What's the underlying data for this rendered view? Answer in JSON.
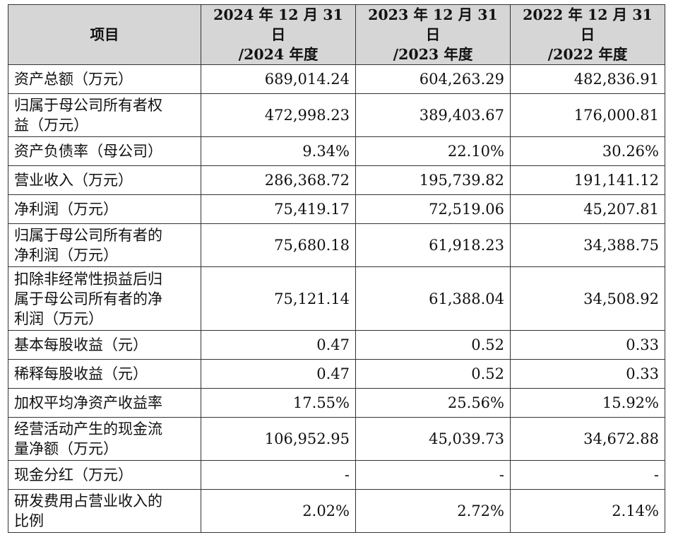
{
  "header": {
    "item": "项目",
    "col2024": [
      "2024 年 12 月 31 日",
      "/2024 年度"
    ],
    "col2023": [
      "2023 年 12 月 31 日",
      "/2023 年度"
    ],
    "col2022": [
      "2022 年 12 月 31 日",
      "/2022 年度"
    ]
  },
  "rows": [
    {
      "label": [
        "资产总额（万元）"
      ],
      "v2024": "689,014.24",
      "v2023": "604,263.29",
      "v2022": "482,836.91"
    },
    {
      "label": [
        "归属于母公司所有者权",
        "益（万元）"
      ],
      "v2024": "472,998.23",
      "v2023": "389,403.67",
      "v2022": "176,000.81"
    },
    {
      "label": [
        "资产负债率（母公司）"
      ],
      "v2024": "9.34%",
      "v2023": "22.10%",
      "v2022": "30.26%"
    },
    {
      "label": [
        "营业收入（万元）"
      ],
      "v2024": "286,368.72",
      "v2023": "195,739.82",
      "v2022": "191,141.12"
    },
    {
      "label": [
        "净利润（万元）"
      ],
      "v2024": "75,419.17",
      "v2023": "72,519.06",
      "v2022": "45,207.81"
    },
    {
      "label": [
        "归属于母公司所有者的",
        "净利润（万元）"
      ],
      "v2024": "75,680.18",
      "v2023": "61,918.23",
      "v2022": "34,388.75"
    },
    {
      "label": [
        "扣除非经常性损益后归",
        "属于母公司所有者的净",
        "利润（万元）"
      ],
      "v2024": "75,121.14",
      "v2023": "61,388.04",
      "v2022": "34,508.92"
    },
    {
      "label": [
        "基本每股收益（元）"
      ],
      "v2024": "0.47",
      "v2023": "0.52",
      "v2022": "0.33"
    },
    {
      "label": [
        "稀释每股收益（元）"
      ],
      "v2024": "0.47",
      "v2023": "0.52",
      "v2022": "0.33"
    },
    {
      "label": [
        "加权平均净资产收益率"
      ],
      "v2024": "17.55%",
      "v2023": "25.56%",
      "v2022": "15.92%"
    },
    {
      "label": [
        "经营活动产生的现金流",
        "量净额（万元）"
      ],
      "v2024": "106,952.95",
      "v2023": "45,039.73",
      "v2022": "34,672.88"
    },
    {
      "label": [
        "现金分红（万元）"
      ],
      "v2024": "-",
      "v2023": "-",
      "v2022": "-"
    },
    {
      "label": [
        "研发费用占营业收入的",
        "比例"
      ],
      "v2024": "2.02%",
      "v2023": "2.72%",
      "v2022": "2.14%"
    }
  ]
}
